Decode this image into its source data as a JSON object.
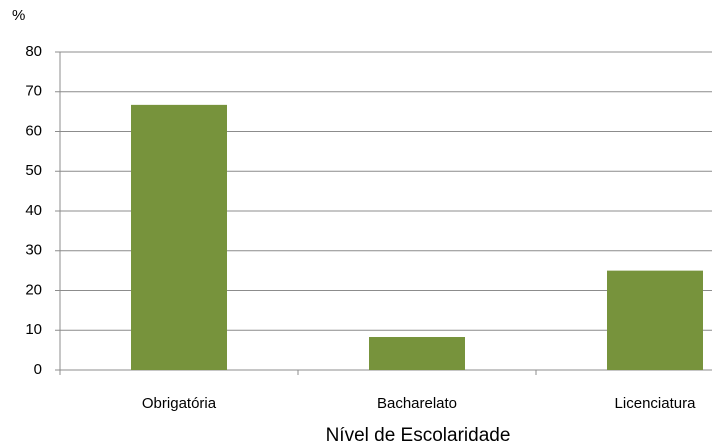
{
  "chart_data": {
    "type": "bar",
    "ylabel": "%",
    "xlabel": "Nível de Escolaridade",
    "categories": [
      "Obrigatória",
      "Bacharelato",
      "Licenciatura"
    ],
    "values": [
      66.7,
      8.3,
      25
    ],
    "color": "#77933c",
    "ylim": [
      0,
      80
    ],
    "yticks": [
      0,
      10,
      20,
      30,
      40,
      50,
      60,
      70,
      80
    ],
    "grid": true
  }
}
